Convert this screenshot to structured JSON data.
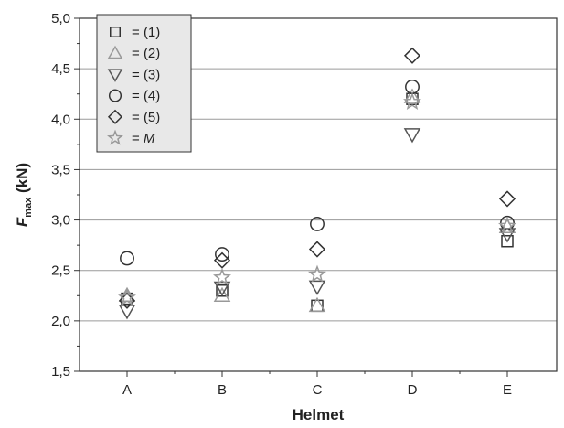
{
  "chart_data": {
    "type": "scatter",
    "xlabel": "Helmet",
    "ylabel": {
      "main": "F",
      "sub": "max",
      "unit": " (kN)"
    },
    "categories": [
      "A",
      "B",
      "C",
      "D",
      "E"
    ],
    "ylim": [
      1.5,
      5.0
    ],
    "yticks": [
      "1,5",
      "2,0",
      "2,5",
      "3,0",
      "3,5",
      "4,0",
      "4,5",
      "5,0"
    ],
    "grid": {
      "horizontal": true,
      "vertical": false
    },
    "legend": "top-left",
    "series": [
      {
        "name": "(1)",
        "marker": "square",
        "color": "#333333",
        "values": [
          2.22,
          2.3,
          2.15,
          4.2,
          2.79
        ]
      },
      {
        "name": "(2)",
        "marker": "triangle-up",
        "color": "#999999",
        "values": [
          2.25,
          2.25,
          2.15,
          4.22,
          2.93
        ]
      },
      {
        "name": "(3)",
        "marker": "triangle-down",
        "color": "#555555",
        "values": [
          2.1,
          2.33,
          2.34,
          3.85,
          2.86
        ]
      },
      {
        "name": "(4)",
        "marker": "circle",
        "color": "#333333",
        "values": [
          2.62,
          2.66,
          2.96,
          4.32,
          2.97
        ]
      },
      {
        "name": "(5)",
        "marker": "diamond",
        "color": "#333333",
        "values": [
          2.2,
          2.6,
          2.71,
          4.63,
          3.21
        ]
      },
      {
        "name": "M",
        "marker": "star",
        "color": "#999999",
        "values": [
          2.23,
          2.43,
          2.46,
          4.17,
          2.94
        ],
        "italic": true
      }
    ]
  }
}
